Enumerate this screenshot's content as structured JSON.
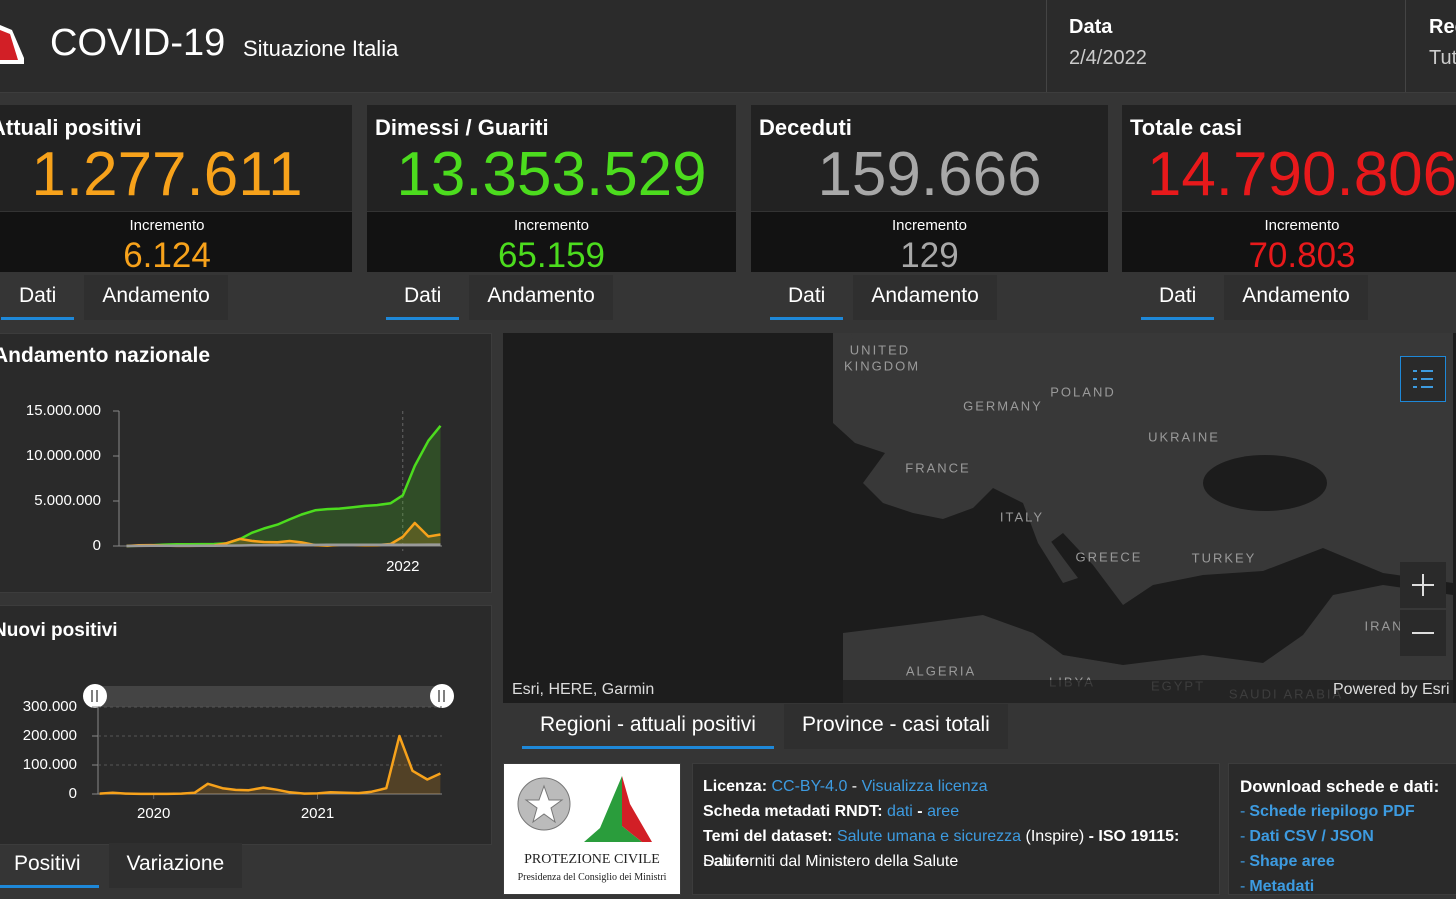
{
  "header": {
    "title": "COVID-19",
    "subtitle": "Situazione Italia",
    "date_label": "Data",
    "date": "2/4/2022",
    "region_label": "Regione",
    "region": "Tutte"
  },
  "cards": [
    {
      "title": "Attuali positivi",
      "value": "1.277.611",
      "increment_label": "Incremento",
      "increment": "6.124",
      "color": "#f7a21b",
      "tabs": [
        "Dati",
        "Andamento"
      ]
    },
    {
      "title": "Dimessi / Guariti",
      "value": "13.353.529",
      "increment_label": "Incremento",
      "increment": "65.159",
      "color": "#4cdc1e",
      "tabs": [
        "Dati",
        "Andamento"
      ]
    },
    {
      "title": "Deceduti",
      "value": "159.666",
      "increment_label": "Incremento",
      "increment": "129",
      "color": "#a8a8a8",
      "tabs": [
        "Dati",
        "Andamento"
      ]
    },
    {
      "title": "Totale casi",
      "value": "14.790.806",
      "increment_label": "Incremento",
      "increment": "70.803",
      "color": "#e8191b",
      "tabs": [
        "Dati",
        "Andamento"
      ]
    }
  ],
  "chart_data": [
    {
      "type": "line",
      "title": "Andamento nazionale",
      "area": true,
      "grid": false,
      "x": [
        2020.17,
        2020.25,
        2020.33,
        2020.42,
        2020.5,
        2020.58,
        2020.67,
        2020.75,
        2020.83,
        2020.92,
        2021.0,
        2021.08,
        2021.17,
        2021.25,
        2021.33,
        2021.42,
        2021.5,
        2021.58,
        2021.67,
        2021.75,
        2021.83,
        2021.92,
        2022.0,
        2022.08,
        2022.17,
        2022.25
      ],
      "series": [
        {
          "color": "#4cdc1e",
          "values": [
            0,
            17000,
            76000,
            158000,
            190000,
            199000,
            206000,
            224000,
            289000,
            760000,
            1463000,
            1940000,
            2380000,
            2950000,
            3500000,
            3970000,
            4100000,
            4160000,
            4300000,
            4460000,
            4540000,
            4760000,
            5630000,
            8900000,
            11700000,
            13353529
          ]
        },
        {
          "color": "#f7a21b",
          "values": [
            1000,
            78000,
            101000,
            42000,
            16000,
            12000,
            27000,
            54000,
            299000,
            788000,
            570000,
            440000,
            420000,
            560000,
            400000,
            100000,
            41000,
            130000,
            135000,
            90000,
            100000,
            220000,
            1020000,
            2560000,
            1060000,
            1277611
          ]
        },
        {
          "color": "#9a9a9a",
          "values": [
            0,
            13000,
            28000,
            33000,
            35000,
            35000,
            35000,
            36000,
            39000,
            56000,
            75000,
            88000,
            97000,
            109000,
            121000,
            126000,
            128000,
            128000,
            130000,
            131000,
            132000,
            134000,
            138000,
            147000,
            154000,
            159666
          ]
        }
      ],
      "xlim": [
        2020.12,
        2022.26
      ],
      "xticks": [
        2022
      ],
      "ylim": [
        0,
        15000000
      ],
      "yticks": [
        0,
        {
          "value": 5000000,
          "label": "5.000.000"
        },
        {
          "value": 10000000,
          "label": "10.000.000"
        },
        {
          "value": 15000000,
          "label": "15.000.000"
        }
      ]
    },
    {
      "type": "line",
      "title": "Nuovi positivi",
      "area": true,
      "grid": true,
      "x": [
        2020.17,
        2020.25,
        2020.33,
        2020.42,
        2020.5,
        2020.58,
        2020.67,
        2020.75,
        2020.83,
        2020.92,
        2021.0,
        2021.08,
        2021.17,
        2021.25,
        2021.33,
        2021.42,
        2021.5,
        2021.58,
        2021.67,
        2021.75,
        2021.83,
        2021.92,
        2022.0,
        2022.08,
        2022.17,
        2022.25
      ],
      "series": [
        {
          "color": "#f7a21b",
          "values": [
            1500,
            4000,
            1500,
            300,
            200,
            400,
            1500,
            4000,
            35000,
            20000,
            14000,
            13000,
            22000,
            15000,
            6000,
            1500,
            2000,
            6000,
            4000,
            3000,
            8000,
            20000,
            200000,
            80000,
            50000,
            70803
          ]
        }
      ],
      "xlim": [
        2020.16,
        2022.26
      ],
      "xticks": [
        {
          "value": 2020.5,
          "label": "2020"
        },
        {
          "value": 2021.5,
          "label": "2021"
        }
      ],
      "ylim": [
        0,
        300000
      ],
      "yticks": [
        0,
        {
          "value": 100000,
          "label": "100.000"
        },
        {
          "value": 200000,
          "label": "200.000"
        },
        {
          "value": 300000,
          "label": "300.000"
        }
      ]
    }
  ],
  "chart_tabs": [
    "Positivi",
    "Variazione"
  ],
  "map": {
    "labels": [
      "UNITED",
      "KINGDOM",
      "POLAND",
      "GERMANY",
      "UKRAINE",
      "FRANCE",
      "ITALY",
      "GREECE",
      "TURKEY",
      "ALGERIA",
      "LIBYA",
      "EGYPT",
      "SAUDI ARABIA",
      "IRAN"
    ],
    "attribution": "Esri, HERE, Garmin",
    "powered_by": "Powered by Esri",
    "tabs": [
      "Regioni - attuali positivi",
      "Province - casi totali"
    ]
  },
  "footer": {
    "logo_text": "PROTEZIONE CIVILE",
    "logo_subtext": "Presidenza del Consiglio dei Ministri",
    "lines": [
      [
        {
          "kind": "label",
          "text": "Licenza: "
        },
        {
          "kind": "link",
          "text": "CC-BY-4.0"
        },
        {
          "kind": "plain",
          "text": " - "
        },
        {
          "kind": "link",
          "text": "Visualizza licenza"
        }
      ],
      [
        {
          "kind": "label",
          "text": "Scheda metadati RNDT: "
        },
        {
          "kind": "link",
          "text": "dati"
        },
        {
          "kind": "label",
          "text": " - "
        },
        {
          "kind": "link",
          "text": "aree"
        }
      ],
      [
        {
          "kind": "label",
          "text": "Temi del dataset: "
        },
        {
          "kind": "link",
          "text": "Salute umana e sicurezza"
        },
        {
          "kind": "plain",
          "text": " (Inspire) "
        },
        {
          "kind": "label",
          "text": "- ISO 19115: "
        },
        {
          "kind": "plain",
          "text": "Salute"
        }
      ],
      [
        {
          "kind": "plain",
          "text": "Dati forniti dal Ministero della Salute"
        }
      ]
    ],
    "downloads_title": "Download schede e dati:",
    "bullet": "-",
    "downloads": [
      "Schede riepilogo PDF",
      "Dati CSV / JSON",
      "Shape aree",
      "Metadati"
    ]
  }
}
